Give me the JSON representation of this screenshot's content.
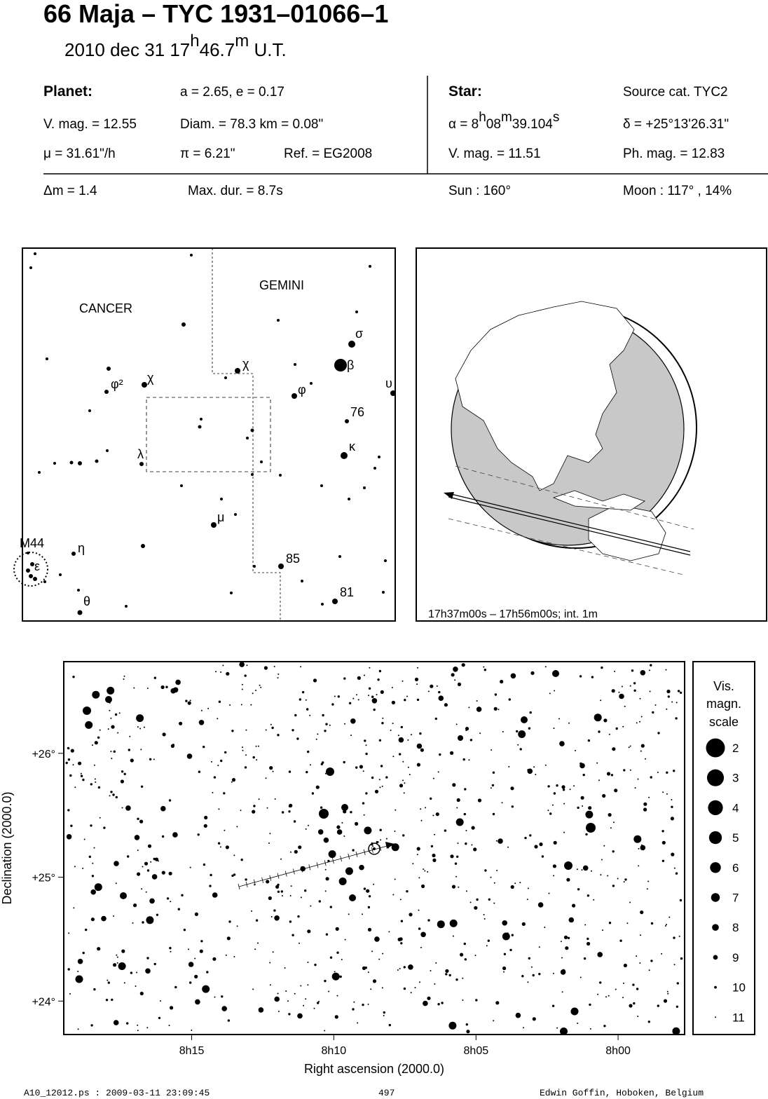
{
  "header": {
    "title": "66 Maja  –  TYC 1931–01066–1",
    "subtitle": [
      "2010 dec 31  17",
      "h",
      "46.7",
      "m",
      " U.T."
    ]
  },
  "planet": {
    "heading": "Planet:",
    "orbit": "a = 2.65, e = 0.17",
    "vmag": "V. mag. = 12.55",
    "diam": "Diam. = 78.3 km = 0.08\"",
    "mu": "μ =  31.61\"/h",
    "pi": "π =  6.21\"",
    "ref": "Ref. = EG2008",
    "dm": "Δm = 1.4",
    "maxdur": "Max. dur. = 8.7s"
  },
  "star": {
    "heading": "Star:",
    "source": "Source cat.  TYC2",
    "alpha": [
      "α =  8",
      "h",
      "08",
      "m",
      "39.104",
      "s"
    ],
    "delta": "δ = +25°13'26.31\"",
    "vmag": "V. mag. = 11.51",
    "phmag": "Ph. mag. = 12.83",
    "sun": "Sun : 160°",
    "moon": "Moon : 117° , 14%"
  },
  "finder": {
    "labels": [
      "CANCER",
      "GEMINI",
      "σ",
      "β",
      "υ",
      "χ",
      "χ",
      "φ²",
      "φ",
      "76",
      "κ",
      "λ",
      "μ",
      "M44",
      "η",
      "ε",
      "85",
      "81",
      "θ"
    ]
  },
  "globe": {
    "caption": "17h37m00s – 17h56m00s; int.  1m"
  },
  "starchart": {
    "xlim": [
      8.325,
      7.961
    ],
    "ylim": [
      23.73,
      26.74
    ],
    "xticks": [
      {
        "value": 8.25,
        "label": "8h15"
      },
      {
        "value": 8.1667,
        "label": "8h10"
      },
      {
        "value": 8.0833,
        "label": "8h05"
      },
      {
        "value": 8,
        "label": "8h00"
      }
    ],
    "yticks": [
      {
        "value": 26,
        "label": "+26°"
      },
      {
        "value": 25,
        "label": "+25°"
      },
      {
        "value": 24,
        "label": "+24°"
      }
    ],
    "xlabel": "Right ascension (2000.0)",
    "ylabel": "Declination (2000.0)"
  },
  "scale": {
    "title": [
      "Vis.",
      "magn.",
      "scale"
    ],
    "mags": [
      2,
      3,
      4,
      5,
      6,
      7,
      8,
      9,
      10,
      11
    ]
  },
  "footer": {
    "file": "A10_12012.ps : 2009-03-11 23:09:45",
    "page": "497",
    "author": "Edwin Goffin, Hoboken, Belgium"
  }
}
